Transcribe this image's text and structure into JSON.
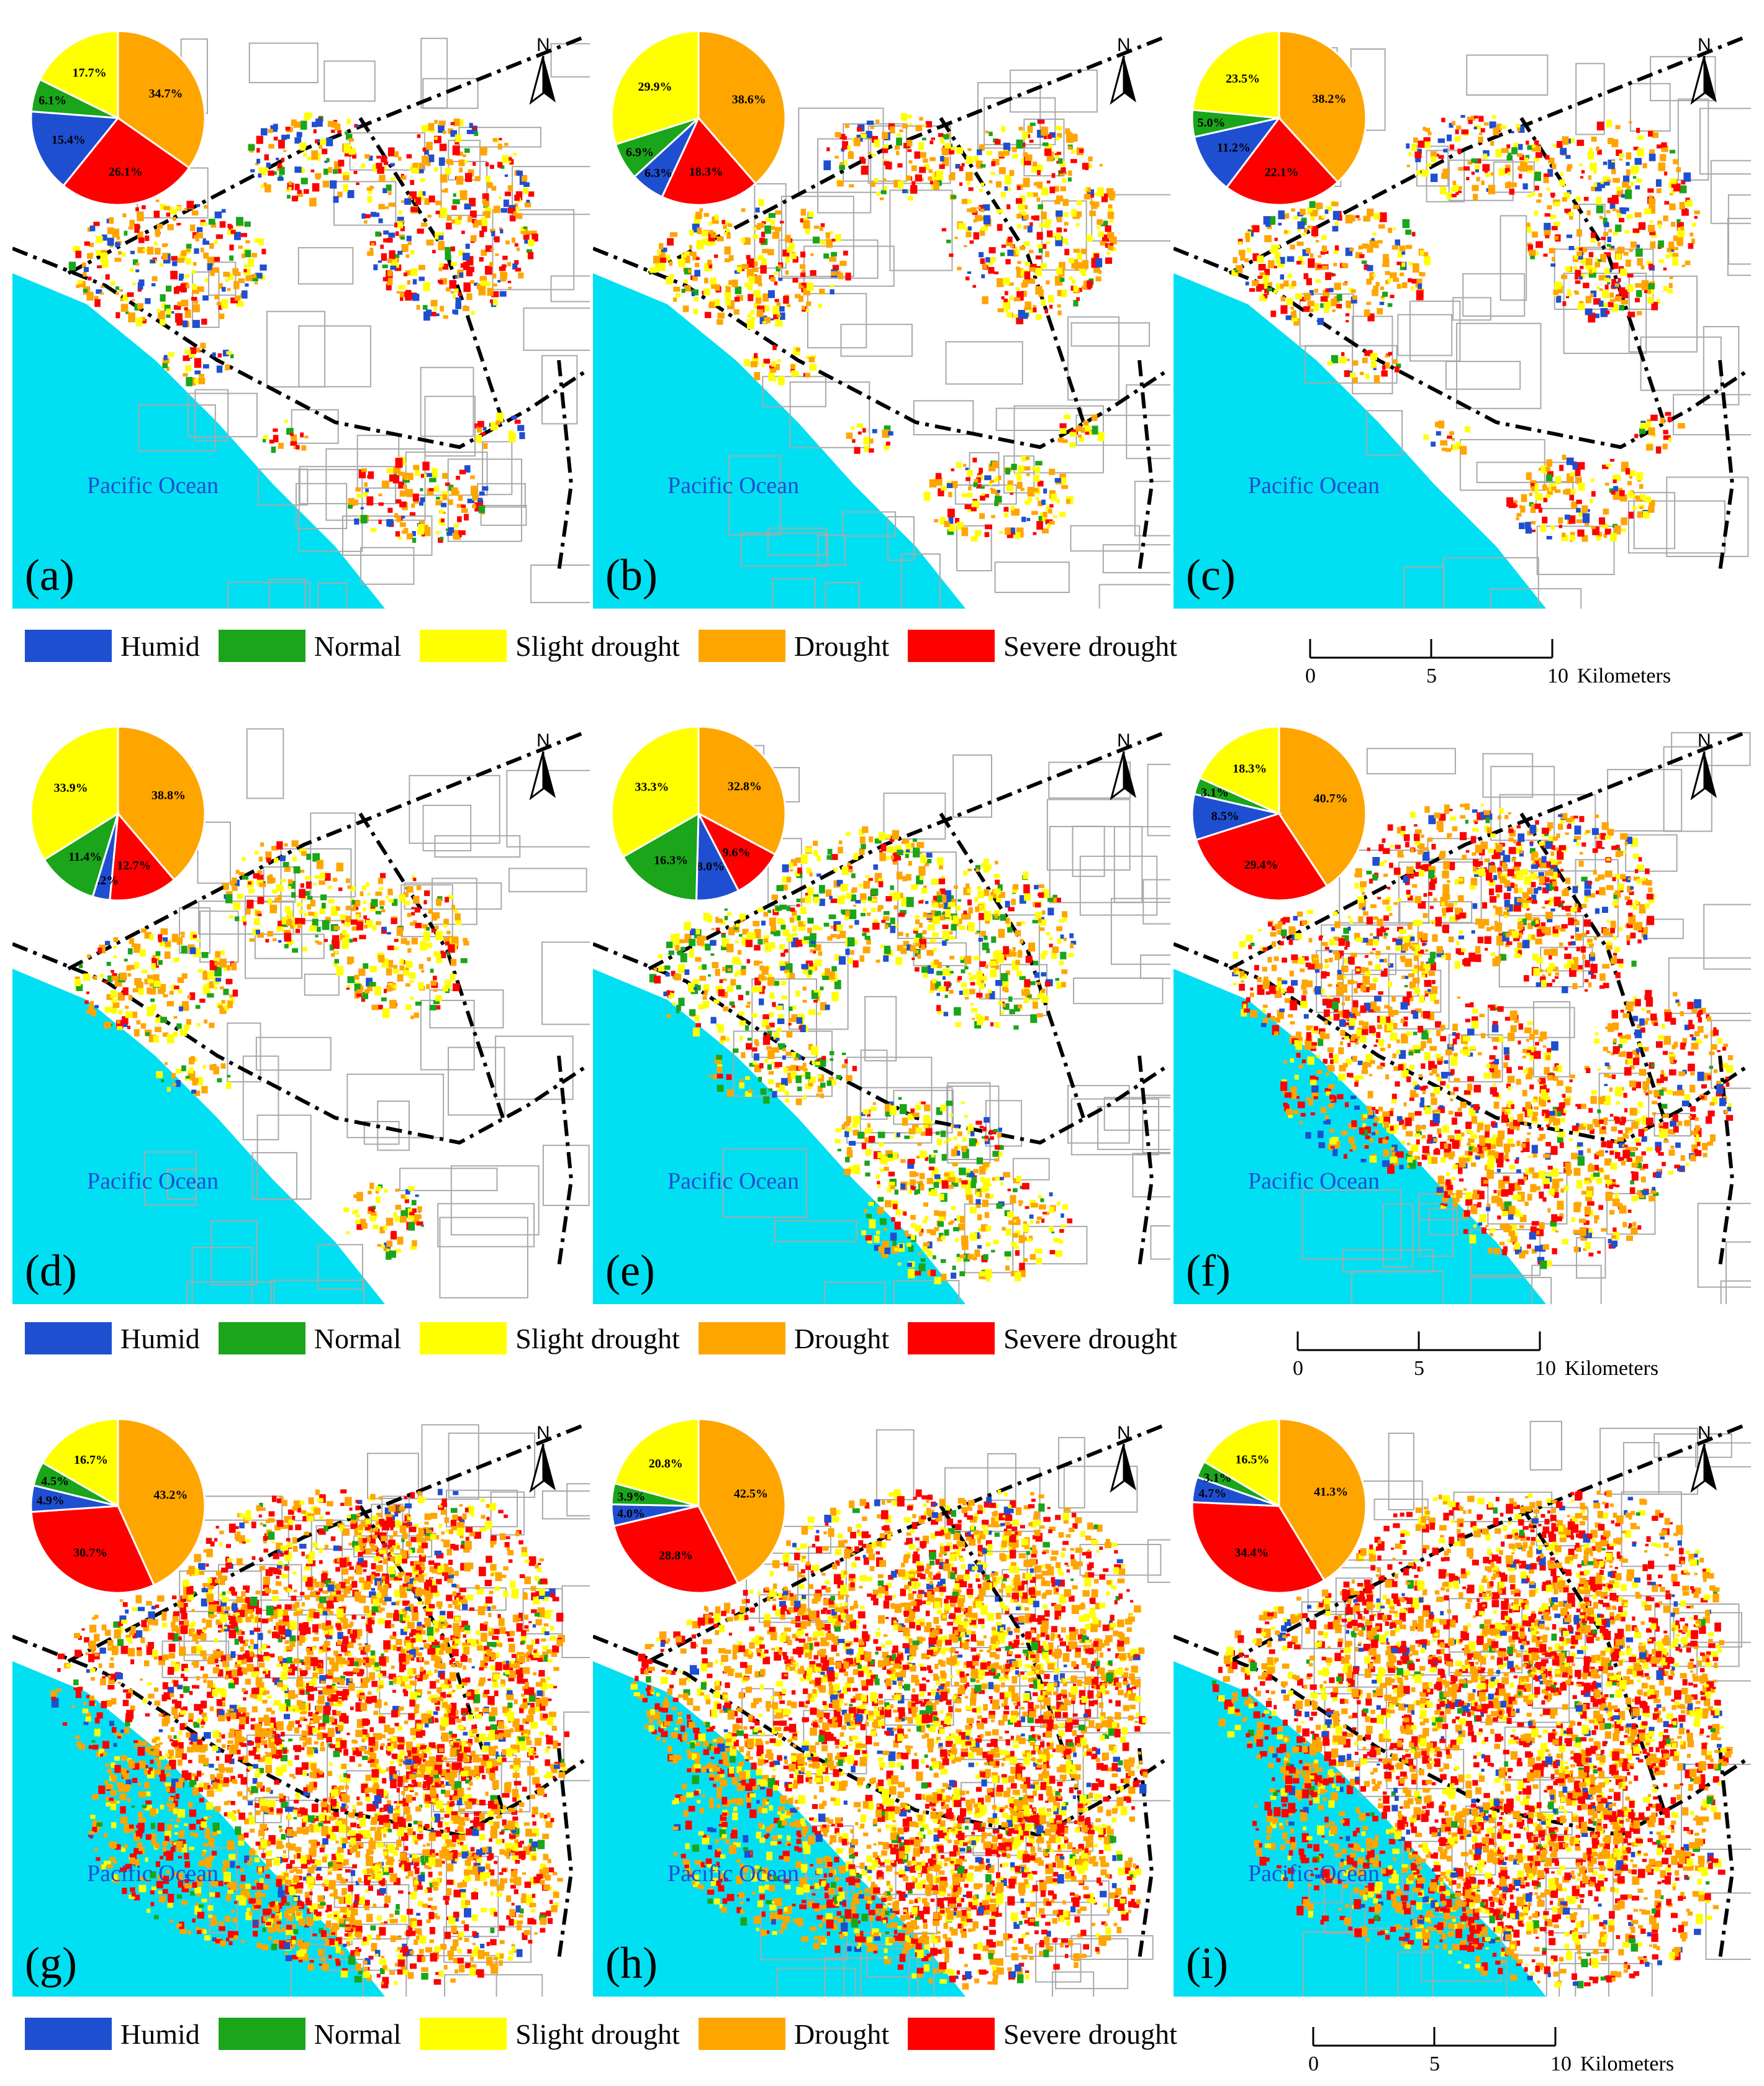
{
  "colors": {
    "humid": "#1f4fd1",
    "normal": "#1aa51a",
    "slight": "#ffff00",
    "drought": "#ffa500",
    "severe": "#ff0000",
    "ocean": "#00e0f2"
  },
  "north_label": "N",
  "ocean_label": "Pacific Ocean",
  "legend": [
    {
      "key": "humid",
      "label": "Humid"
    },
    {
      "key": "normal",
      "label": "Normal"
    },
    {
      "key": "slight",
      "label": "Slight drought"
    },
    {
      "key": "drought",
      "label": "Drought"
    },
    {
      "key": "severe",
      "label": "Severe drought"
    }
  ],
  "scalebar": {
    "ticks": [
      "0",
      "5",
      "10"
    ],
    "unit": "Kilometers"
  },
  "panels": [
    {
      "label": "(a)",
      "pie": {
        "humid": 15.4,
        "normal": 6.1,
        "slight": 17.7,
        "drought": 34.7,
        "severe": 26.1
      },
      "pie_labels": {
        "humid": "15.4%",
        "normal": "6.1%",
        "slight": "17.7%",
        "drought": "34.7%",
        "severe": "26.1%"
      }
    },
    {
      "label": "(b)",
      "pie": {
        "humid": 6.3,
        "normal": 6.9,
        "slight": 29.9,
        "drought": 38.6,
        "severe": 18.3
      },
      "pie_labels": {
        "humid": "6.3%",
        "normal": "6.9%",
        "slight": "29.9%",
        "drought": "38.6%",
        "severe": "18.3%"
      }
    },
    {
      "label": "(c)",
      "pie": {
        "humid": 11.2,
        "normal": 5.0,
        "slight": 23.5,
        "drought": 38.2,
        "severe": 22.1
      },
      "pie_labels": {
        "humid": "11.2%",
        "normal": "5.0%",
        "slight": "23.5%",
        "drought": "38.2%",
        "severe": "22.1%"
      }
    },
    {
      "label": "(d)",
      "pie": {
        "humid": 3.2,
        "normal": 11.4,
        "slight": 33.9,
        "drought": 38.8,
        "severe": 12.7
      },
      "pie_labels": {
        "humid": "3.2%",
        "normal": "11.4%",
        "slight": "33.9%",
        "drought": "38.8%",
        "severe": "12.7%"
      }
    },
    {
      "label": "(e)",
      "pie": {
        "humid": 8.0,
        "normal": 16.3,
        "slight": 33.3,
        "drought": 32.8,
        "severe": 9.6
      },
      "pie_labels": {
        "humid": "8.0%",
        "normal": "16.3%",
        "slight": "33.3%",
        "drought": "32.8%",
        "severe": "9.6%"
      }
    },
    {
      "label": "(f)",
      "pie": {
        "humid": 8.5,
        "normal": 3.1,
        "slight": 18.3,
        "drought": 40.7,
        "severe": 29.4
      },
      "pie_labels": {
        "humid": "8.5%",
        "normal": "3.1%",
        "slight": "18.3%",
        "drought": "40.7%",
        "severe": "29.4%"
      }
    },
    {
      "label": "(g)",
      "pie": {
        "humid": 4.9,
        "normal": 4.5,
        "slight": 16.7,
        "drought": 43.2,
        "severe": 30.7
      },
      "pie_labels": {
        "humid": "4.9%",
        "normal": "4.5%",
        "slight": "16.7%",
        "drought": "43.2%",
        "severe": "30.7%"
      }
    },
    {
      "label": "(h)",
      "pie": {
        "humid": 4.0,
        "normal": 3.9,
        "slight": 20.8,
        "drought": 42.5,
        "severe": 28.8
      },
      "pie_labels": {
        "humid": "4.0%",
        "normal": "3.9%",
        "slight": "20.8%",
        "drought": "42.5%",
        "severe": "28.8%"
      }
    },
    {
      "label": "(i)",
      "pie": {
        "humid": 4.7,
        "normal": 3.1,
        "slight": 16.5,
        "drought": 41.3,
        "severe": 34.4
      },
      "pie_labels": {
        "humid": "4.7%",
        "normal": "3.1%",
        "slight": "16.5%",
        "drought": "41.3%",
        "severe": "34.4%"
      }
    }
  ]
}
